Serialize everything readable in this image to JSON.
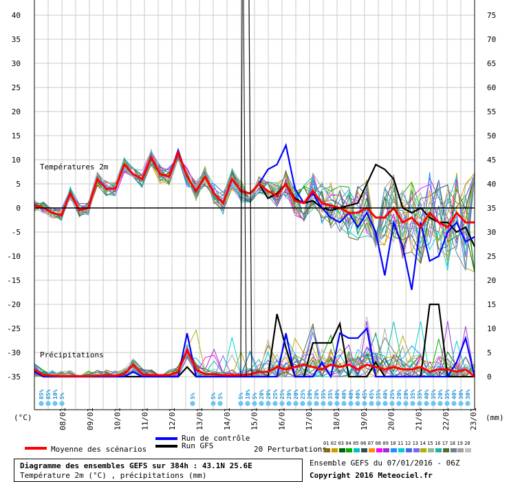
{
  "chart_data": {
    "type": "line",
    "left_axis_ticks": [
      "40",
      "35",
      "30",
      "25",
      "20",
      "15",
      "10",
      "5",
      "0",
      "-5",
      "-10",
      "-15",
      "-20",
      "-25",
      "-30",
      "-35"
    ],
    "right_axis_ticks": [
      "75",
      "70",
      "65",
      "60",
      "55",
      "50",
      "45",
      "40",
      "35",
      "30",
      "25",
      "20",
      "15",
      "10",
      "5",
      "0"
    ],
    "left_axis_unit": "(°C)",
    "right_axis_unit": "(mm)",
    "date_labels": [
      "08/01",
      "09/01",
      "10/01",
      "11/01",
      "12/01",
      "13/01",
      "14/01",
      "15/01",
      "16/01",
      "17/01",
      "18/01",
      "19/01",
      "20/01",
      "21/01",
      "22/01",
      "23/01"
    ],
    "temp_label": "Températures 2m",
    "precip_label": "Précipitations",
    "snow_pct": [
      "85%",
      "85%",
      "10%",
      "5%",
      "5%",
      "5%",
      "5%",
      "5%",
      "10%",
      "5%",
      "20%",
      "20%",
      "25%",
      "25%",
      "20%",
      "20%",
      "25%",
      "20%",
      "20%",
      "35%",
      "35%",
      "40%",
      "40%",
      "40%",
      "40%",
      "45%",
      "45%",
      "35%",
      "40%",
      "25%",
      "20%",
      "20%",
      "35%",
      "35%",
      "40%",
      "35%",
      "20%",
      "35%",
      "40%",
      "30%",
      "30%",
      "30%"
    ],
    "series": [
      {
        "name": "Moyenne des scénarios",
        "color": "#ff0000",
        "temp": [
          0.5,
          0,
          -1,
          -1.5,
          3,
          -0.5,
          0,
          6,
          4,
          4,
          9,
          7,
          6,
          10.5,
          7,
          6.5,
          11.5,
          6.5,
          3.5,
          6.5,
          3,
          1,
          6,
          3.5,
          3,
          5,
          3.5,
          2.5,
          5,
          1.5,
          1,
          3.5,
          1,
          0.5,
          0,
          -1,
          -1,
          0,
          -2,
          -2,
          0,
          -3,
          -2,
          -4,
          -1,
          -3,
          -4,
          -1,
          -3,
          -3
        ],
        "precip": [
          1.5,
          0.3,
          0.2,
          0.1,
          0.1,
          0.1,
          0.1,
          0.2,
          0.2,
          0.2,
          0.5,
          2.5,
          0.5,
          0.3,
          0.3,
          0.3,
          1,
          5.5,
          1.5,
          0.5,
          0.5,
          0.3,
          0.3,
          0.3,
          0.5,
          1,
          1,
          2,
          1.5,
          2,
          2.5,
          2,
          1.5,
          2.5,
          2,
          2.5,
          1.5,
          2.5,
          2,
          1.5,
          2,
          1.5,
          1.5,
          2,
          1,
          1.5,
          1.5,
          1,
          1.5,
          0
        ]
      },
      {
        "name": "Run de contrôle",
        "color": "#0000ff",
        "temp": [
          0.5,
          0,
          -1,
          -1.5,
          3,
          -0.5,
          0,
          6,
          4,
          4,
          9,
          7,
          6,
          10.5,
          7,
          6.5,
          12,
          6.5,
          3.5,
          6.5,
          3,
          1,
          6,
          3.5,
          3,
          5,
          8,
          9,
          13,
          4,
          1,
          3,
          0,
          -2,
          -3,
          -1,
          -4,
          -1,
          -5,
          -14,
          -3,
          -8,
          -17,
          -3,
          -11,
          -10,
          -5,
          -3,
          -7,
          -6
        ],
        "precip": [
          1,
          0,
          0,
          0,
          0,
          0,
          0,
          0,
          0,
          0,
          0,
          1,
          0,
          0,
          0,
          0,
          0,
          9,
          0,
          0,
          0,
          0,
          0,
          0,
          0,
          0,
          0,
          0,
          9,
          0,
          0,
          0,
          3,
          0,
          9,
          8,
          8,
          10,
          0,
          0,
          0,
          0,
          0,
          0,
          0,
          0,
          0,
          3,
          8,
          0
        ]
      },
      {
        "name": "Run GFS",
        "color": "#000000",
        "temp": [
          0.5,
          0,
          -1,
          -1.5,
          3,
          -0.5,
          0,
          6,
          4,
          4,
          9,
          7,
          6,
          10.5,
          7,
          6.5,
          11.5,
          6.5,
          3.5,
          6.5,
          3,
          1,
          6,
          3.5,
          3,
          5,
          2,
          3,
          5,
          2,
          1,
          1.5,
          0,
          -0.5,
          0,
          0.5,
          1,
          5,
          9,
          8,
          6,
          0,
          -1,
          0,
          -2,
          -3,
          -3,
          -5,
          -4,
          -8
        ],
        "precip": [
          1,
          0,
          0,
          0,
          0,
          0,
          0,
          0,
          0,
          0,
          0,
          0,
          0,
          0,
          0,
          0,
          0,
          2,
          0,
          0,
          0,
          0,
          0,
          0,
          0,
          0,
          0,
          13,
          6,
          0,
          0,
          7,
          7,
          7,
          11,
          0,
          0,
          0,
          3,
          0,
          0,
          0,
          0,
          0,
          15,
          15,
          0,
          0,
          0,
          0
        ]
      }
    ],
    "perturbation_colors": [
      "#8b6914",
      "#c8a000",
      "#006400",
      "#00b000",
      "#00c0c0",
      "#2f4f4f",
      "#ff8c00",
      "#ff00ff",
      "#9932cc",
      "#1e90ff",
      "#00ced1",
      "#4169e1",
      "#7b68ee",
      "#b0b000",
      "#8fbc8f",
      "#20b2aa",
      "#556b2f",
      "#708090",
      "#a0a0a0",
      "#c0c0c0"
    ],
    "perturbation_numbers": [
      "01",
      "02",
      "03",
      "04",
      "05",
      "06",
      "07",
      "08",
      "09",
      "10",
      "11",
      "12",
      "13",
      "14",
      "15",
      "16",
      "17",
      "18",
      "19",
      "20"
    ]
  },
  "legend": {
    "mean": "Moyenne des scénarios",
    "control": "Run de contrôle",
    "gfs": "Run GFS",
    "perturbations": "20 Perturbations"
  },
  "footer": {
    "title_line1": "Diagramme des ensembles GEFS sur 384h : 43.1N 25.6E",
    "title_line2": "Température 2m (°C) , précipitations (mm)",
    "run_info": "Ensemble GEFS du 07/01/2016 - 06Z",
    "copyright": "Copyright 2016 Meteociel.fr"
  }
}
